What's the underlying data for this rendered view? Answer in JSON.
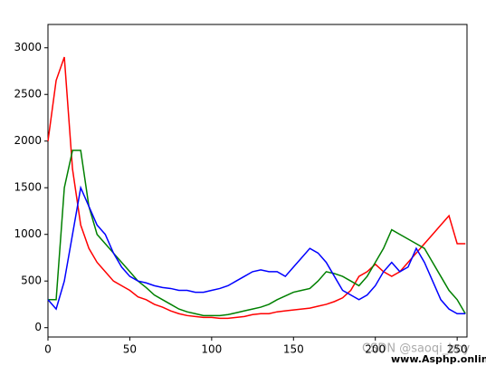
{
  "chart_data": {
    "type": "line",
    "x": [
      0,
      5,
      10,
      15,
      20,
      25,
      30,
      35,
      40,
      45,
      50,
      55,
      60,
      65,
      70,
      75,
      80,
      85,
      90,
      95,
      100,
      105,
      110,
      115,
      120,
      125,
      130,
      135,
      140,
      145,
      150,
      155,
      160,
      165,
      170,
      175,
      180,
      185,
      190,
      195,
      200,
      205,
      210,
      215,
      220,
      225,
      230,
      235,
      240,
      245,
      250,
      255
    ],
    "series": [
      {
        "color": "#ff0000",
        "values": [
          2000,
          2650,
          2900,
          1700,
          1100,
          850,
          700,
          600,
          500,
          450,
          400,
          330,
          300,
          250,
          220,
          180,
          150,
          130,
          120,
          110,
          110,
          100,
          100,
          110,
          120,
          140,
          150,
          150,
          170,
          180,
          190,
          200,
          210,
          230,
          250,
          280,
          320,
          400,
          550,
          600,
          680,
          600,
          550,
          600,
          700,
          800,
          900,
          1000,
          1100,
          1200,
          900,
          900
        ]
      },
      {
        "color": "#008000",
        "values": [
          300,
          300,
          1500,
          1900,
          1900,
          1300,
          1000,
          900,
          800,
          700,
          600,
          500,
          430,
          350,
          300,
          250,
          200,
          170,
          150,
          130,
          130,
          130,
          140,
          160,
          180,
          200,
          220,
          250,
          300,
          340,
          380,
          400,
          420,
          500,
          600,
          580,
          550,
          500,
          450,
          550,
          700,
          850,
          1050,
          1000,
          950,
          900,
          850,
          700,
          550,
          400,
          300,
          150
        ]
      },
      {
        "color": "#0000ff",
        "values": [
          300,
          200,
          500,
          1000,
          1500,
          1300,
          1100,
          1000,
          800,
          650,
          550,
          500,
          480,
          450,
          430,
          420,
          400,
          400,
          380,
          380,
          400,
          420,
          450,
          500,
          550,
          600,
          620,
          600,
          600,
          550,
          650,
          750,
          850,
          800,
          700,
          550,
          400,
          350,
          300,
          350,
          450,
          600,
          700,
          600,
          650,
          850,
          700,
          500,
          300,
          200,
          150,
          150
        ]
      }
    ],
    "xlim": [
      0,
      256
    ],
    "ylim": [
      -100,
      3250
    ],
    "xticks": [
      0,
      50,
      100,
      150,
      200,
      250
    ],
    "yticks": [
      0,
      500,
      1000,
      1500,
      2000,
      2500,
      3000
    ],
    "watermark": [
      "CSDN @saoqi_boy",
      "www.Asphp.online"
    ]
  }
}
